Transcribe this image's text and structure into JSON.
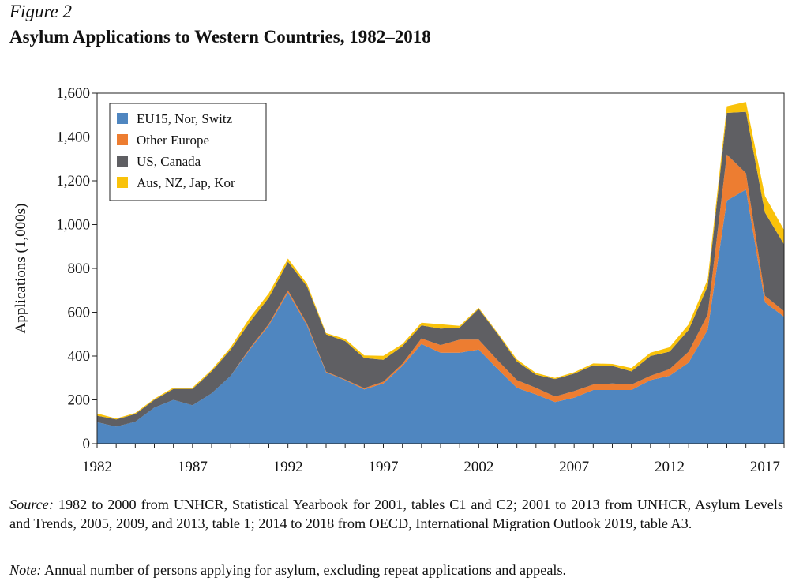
{
  "figure": {
    "label": "Figure 2",
    "title": "Asylum Applications to Western Countries, 1982–2018",
    "source_label": "Source:",
    "source_text": "1982 to 2000 from UNHCR, Statistical Yearbook for 2001, tables C1 and C2; 2001 to 2013 from UNHCR, Asylum Levels and Trends, 2005, 2009, and 2013, table 1; 2014 to 2018 from OECD, International Migration Outlook 2019, table A3.",
    "note_label": "Note:",
    "note_text": "Annual number of persons applying for asylum, excluding repeat applications and appeals."
  },
  "chart_data": {
    "type": "area",
    "stacked": true,
    "title": "Asylum Applications to Western Countries, 1982–2018",
    "xlabel": "",
    "ylabel": "Applications (1,000s)",
    "xlim": [
      1982,
      2018
    ],
    "ylim": [
      0,
      1600
    ],
    "x_ticks": [
      1982,
      1987,
      1992,
      1997,
      2002,
      2007,
      2012,
      2017
    ],
    "y_ticks": [
      0,
      200,
      400,
      600,
      800,
      1000,
      1200,
      1400,
      1600
    ],
    "y_tick_labels": [
      "0",
      "200",
      "400",
      "600",
      "800",
      "1,000",
      "1,200",
      "1,400",
      "1,600"
    ],
    "legend_position": "top-left",
    "x": [
      1982,
      1983,
      1984,
      1985,
      1986,
      1987,
      1988,
      1989,
      1990,
      1991,
      1992,
      1993,
      1994,
      1995,
      1996,
      1997,
      1998,
      1999,
      2000,
      2001,
      2002,
      2003,
      2004,
      2005,
      2006,
      2007,
      2008,
      2009,
      2010,
      2011,
      2012,
      2013,
      2014,
      2015,
      2016,
      2017,
      2018
    ],
    "series": [
      {
        "name": "EU15, Nor, Switz",
        "color": "#4f86c0",
        "values": [
          98,
          78,
          100,
          165,
          200,
          175,
          230,
          310,
          430,
          540,
          690,
          540,
          325,
          290,
          248,
          275,
          355,
          455,
          415,
          415,
          430,
          340,
          255,
          225,
          190,
          210,
          245,
          245,
          245,
          290,
          310,
          370,
          520,
          1110,
          1160,
          645,
          580
        ]
      },
      {
        "name": "Other Europe",
        "color": "#ed7d31",
        "values": [
          0,
          0,
          0,
          0,
          0,
          0,
          0,
          0,
          5,
          7,
          10,
          8,
          4,
          3,
          5,
          8,
          10,
          25,
          35,
          60,
          45,
          40,
          35,
          30,
          25,
          30,
          25,
          30,
          25,
          20,
          30,
          50,
          70,
          210,
          75,
          30,
          25
        ]
      },
      {
        "name": "US, Canada",
        "color": "#5f5f63",
        "values": [
          30,
          33,
          35,
          35,
          50,
          75,
          100,
          120,
          120,
          120,
          130,
          170,
          170,
          175,
          138,
          100,
          80,
          60,
          75,
          55,
          140,
          120,
          85,
          60,
          80,
          80,
          88,
          80,
          60,
          90,
          80,
          100,
          130,
          190,
          280,
          380,
          305
        ]
      },
      {
        "name": "Aus, NZ, Jap, Kor",
        "color": "#f9c20a",
        "values": [
          10,
          4,
          5,
          5,
          6,
          6,
          7,
          10,
          20,
          20,
          15,
          12,
          6,
          10,
          12,
          18,
          10,
          12,
          20,
          8,
          5,
          5,
          10,
          8,
          5,
          6,
          8,
          9,
          15,
          15,
          20,
          25,
          30,
          30,
          45,
          75,
          65
        ]
      }
    ]
  }
}
